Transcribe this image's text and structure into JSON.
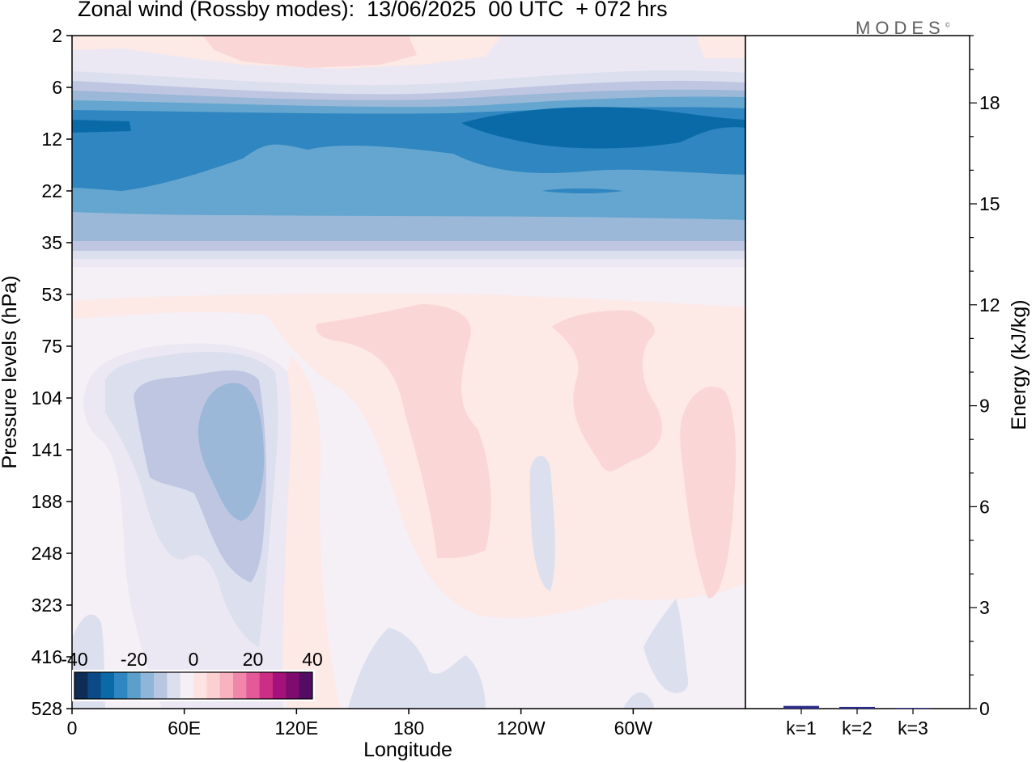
{
  "header": {
    "title": "Zonal wind (Rossby modes):  13/06/2025  00 UTC  + 072 hrs",
    "logo": "MODES"
  },
  "chart_data": [
    {
      "type": "heatmap",
      "title": "Zonal wind (Rossby modes):  13/06/2025  00 UTC  + 072 hrs",
      "xlabel": "Longitude",
      "ylabel": "Pressure levels (hPa)",
      "x_ticks": [
        "0",
        "60E",
        "120E",
        "180",
        "120W",
        "60W"
      ],
      "y_ticks": [
        "2",
        "6",
        "12",
        "22",
        "35",
        "53",
        "75",
        "104",
        "141",
        "188",
        "248",
        "323",
        "416",
        "528"
      ],
      "y_scale": "log",
      "colorbar": {
        "ticks": [
          "-40",
          "-20",
          "0",
          "20",
          "40"
        ],
        "range": [
          -40,
          40
        ],
        "colors": [
          "#0d2c56",
          "#0b4a86",
          "#0a6aa8",
          "#2f86c0",
          "#5aa0cb",
          "#8fb6d9",
          "#b9c6e0",
          "#dcdfee",
          "#f6eff6",
          "#fde4e2",
          "#fbd0d0",
          "#f8b2c0",
          "#f286aa",
          "#e45a98",
          "#cc2d85",
          "#a5117a",
          "#7d0c6e",
          "#530c63"
        ]
      },
      "field_colors": {
        "n35": "#0a6aa8",
        "n30": "#2f86c0",
        "n25": "#64a6cf",
        "n20": "#9bb8d8",
        "n15": "#bfc6e1",
        "n10": "#dcdfee",
        "n5": "#ebe8f3",
        "zero": "#f5eff6",
        "p5": "#fde9e6",
        "p10": "#fbd6d6"
      }
    },
    {
      "type": "bar",
      "ylabel": "Energy (kJ/kg)",
      "categories": [
        "k=1",
        "k=2",
        "k=3"
      ],
      "values": [
        0.08,
        0.05,
        0.02
      ],
      "ylim": [
        0,
        20
      ],
      "y_ticks": [
        "0",
        "3",
        "6",
        "9",
        "12",
        "15",
        "18"
      ],
      "bar_color": "#2b2b8c"
    }
  ]
}
